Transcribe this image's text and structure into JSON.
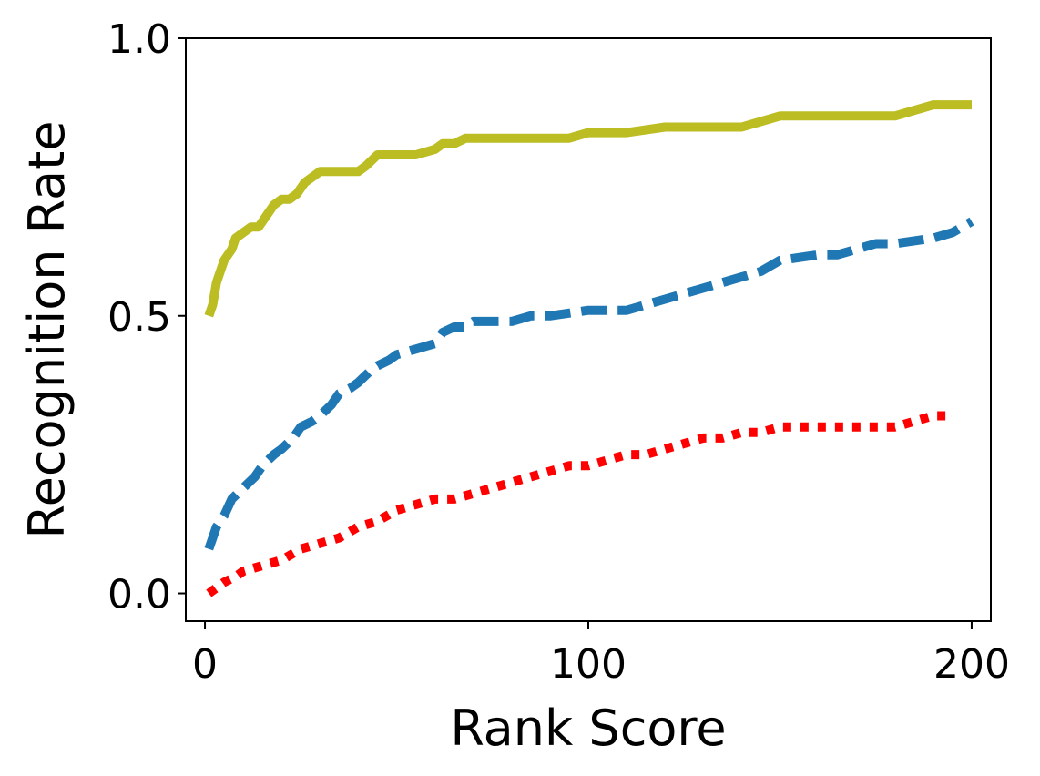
{
  "chart_data": {
    "type": "line",
    "title": "",
    "xlabel": "Rank Score",
    "ylabel": "Recognition Rate",
    "xlim": [
      -5,
      205
    ],
    "ylim": [
      -0.05,
      1.0
    ],
    "xticks": [
      0,
      100,
      200
    ],
    "xtick_labels": [
      "0",
      "100",
      "200"
    ],
    "yticks": [
      0.0,
      0.5,
      1.0
    ],
    "ytick_labels": [
      "0.0",
      "0.5",
      "1.0"
    ],
    "grid": false,
    "legend": "none",
    "series": [
      {
        "color": "#bcbd22",
        "style": "solid",
        "x": [
          1,
          2,
          3,
          5,
          7,
          8,
          10,
          12,
          14,
          16,
          18,
          20,
          22,
          24,
          26,
          28,
          30,
          35,
          40,
          42,
          45,
          50,
          55,
          60,
          62,
          65,
          68,
          70,
          80,
          85,
          90,
          95,
          100,
          105,
          110,
          120,
          130,
          140,
          145,
          150,
          155,
          160,
          170,
          180,
          185,
          190,
          195,
          200
        ],
        "y": [
          0.5,
          0.52,
          0.56,
          0.6,
          0.62,
          0.64,
          0.65,
          0.66,
          0.66,
          0.68,
          0.7,
          0.71,
          0.71,
          0.72,
          0.74,
          0.75,
          0.76,
          0.76,
          0.76,
          0.77,
          0.79,
          0.79,
          0.79,
          0.8,
          0.81,
          0.81,
          0.82,
          0.82,
          0.82,
          0.82,
          0.82,
          0.82,
          0.83,
          0.83,
          0.83,
          0.84,
          0.84,
          0.84,
          0.85,
          0.86,
          0.86,
          0.86,
          0.86,
          0.86,
          0.87,
          0.88,
          0.88,
          0.88
        ]
      },
      {
        "color": "#1f77b4",
        "style": "dashed",
        "x": [
          1,
          2,
          3,
          5,
          7,
          10,
          13,
          15,
          18,
          20,
          23,
          25,
          28,
          30,
          33,
          35,
          38,
          40,
          43,
          45,
          48,
          50,
          55,
          60,
          62,
          65,
          68,
          70,
          80,
          85,
          90,
          100,
          110,
          115,
          120,
          125,
          130,
          135,
          140,
          145,
          150,
          160,
          165,
          170,
          175,
          180,
          190,
          195,
          200
        ],
        "y": [
          0.08,
          0.1,
          0.12,
          0.14,
          0.17,
          0.19,
          0.21,
          0.23,
          0.25,
          0.26,
          0.28,
          0.3,
          0.31,
          0.32,
          0.34,
          0.36,
          0.37,
          0.38,
          0.4,
          0.41,
          0.42,
          0.43,
          0.44,
          0.45,
          0.47,
          0.48,
          0.48,
          0.49,
          0.49,
          0.5,
          0.5,
          0.51,
          0.51,
          0.52,
          0.53,
          0.54,
          0.55,
          0.56,
          0.57,
          0.58,
          0.6,
          0.61,
          0.61,
          0.62,
          0.63,
          0.63,
          0.64,
          0.65,
          0.67
        ]
      },
      {
        "color": "#ff0000",
        "style": "dotted",
        "x": [
          1,
          3,
          5,
          8,
          10,
          15,
          20,
          25,
          30,
          35,
          40,
          45,
          50,
          55,
          60,
          65,
          70,
          75,
          80,
          85,
          90,
          95,
          100,
          105,
          110,
          115,
          120,
          125,
          130,
          135,
          140,
          145,
          150,
          160,
          170,
          180,
          185,
          190,
          195
        ],
        "y": [
          0.0,
          0.01,
          0.02,
          0.03,
          0.04,
          0.05,
          0.06,
          0.08,
          0.09,
          0.1,
          0.12,
          0.13,
          0.15,
          0.16,
          0.17,
          0.17,
          0.18,
          0.19,
          0.2,
          0.21,
          0.22,
          0.23,
          0.23,
          0.24,
          0.25,
          0.25,
          0.26,
          0.27,
          0.28,
          0.28,
          0.29,
          0.29,
          0.3,
          0.3,
          0.3,
          0.3,
          0.31,
          0.32,
          0.32
        ]
      }
    ]
  }
}
